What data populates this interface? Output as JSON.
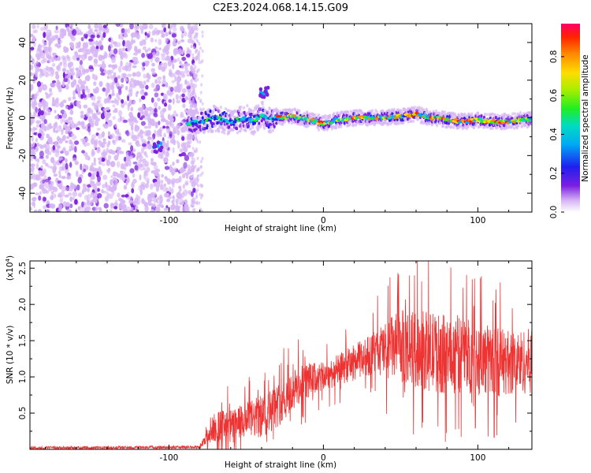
{
  "title": "C2E3.2024.068.14.15.G09",
  "chart_data": [
    {
      "type": "heatmap",
      "name": "spectrogram",
      "xlabel": "Height of straight line (km)",
      "ylabel": "Frequency (Hz)",
      "xlim": [
        -190,
        135
      ],
      "ylim": [
        -50,
        50
      ],
      "x_ticks": [
        -100,
        0,
        100
      ],
      "y_ticks": [
        -40,
        -20,
        0,
        20,
        40
      ],
      "noise_region_x": [
        -190,
        -82
      ],
      "signal_track": {
        "x": [
          -88,
          -80,
          -70,
          -60,
          -50,
          -45,
          -40,
          -35,
          -30,
          -20,
          -10,
          0,
          10,
          20,
          30,
          40,
          50,
          60,
          70,
          80,
          90,
          100,
          110,
          120,
          130
        ],
        "y": [
          -3,
          -2,
          0,
          -2,
          0,
          -2,
          2,
          -1,
          0,
          1,
          -1,
          -3,
          -1,
          0,
          0,
          0,
          1,
          2,
          0,
          -1,
          -2,
          -1,
          -2,
          -2,
          -1
        ]
      },
      "features": [
        {
          "x": -107,
          "y": -16
        },
        {
          "x": -38,
          "y": 14
        }
      ],
      "colorbar": {
        "label": "Normalized spectral amplitude",
        "range": [
          0.0,
          0.97
        ],
        "ticks": [
          "0.0",
          "0.2",
          "0.4",
          "0.6",
          "0.8"
        ]
      }
    },
    {
      "type": "line",
      "name": "snr",
      "xlabel": "Height of straight line (km)",
      "ylabel": "SNR (10 * v/v)",
      "scale_label": "(x10",
      "scale_exp": "4",
      "scale_close": ")",
      "xlim": [
        -190,
        135
      ],
      "ylim": [
        0,
        2.6
      ],
      "x_ticks": [
        -100,
        0,
        100
      ],
      "y_ticks": [
        "0.5",
        "1.0",
        "1.5",
        "2.0",
        "2.5"
      ],
      "color": "#ee3333",
      "envelope": {
        "x": [
          -190,
          -80,
          -70,
          -60,
          -50,
          -40,
          -30,
          -20,
          -10,
          0,
          10,
          20,
          30,
          40,
          50,
          60,
          70,
          80,
          90,
          100,
          110,
          120,
          135
        ],
        "mean": [
          0.02,
          0.03,
          0.32,
          0.3,
          0.4,
          0.45,
          0.6,
          0.8,
          0.95,
          1.0,
          1.1,
          1.2,
          1.3,
          1.38,
          1.42,
          1.38,
          1.35,
          1.3,
          1.32,
          1.25,
          1.22,
          1.2,
          1.22
        ],
        "spread": [
          0.02,
          0.02,
          0.22,
          0.25,
          0.25,
          0.3,
          0.3,
          0.3,
          0.25,
          0.2,
          0.22,
          0.25,
          0.28,
          0.4,
          0.5,
          0.55,
          0.55,
          0.55,
          0.55,
          0.5,
          0.5,
          0.45,
          0.45
        ]
      }
    }
  ]
}
